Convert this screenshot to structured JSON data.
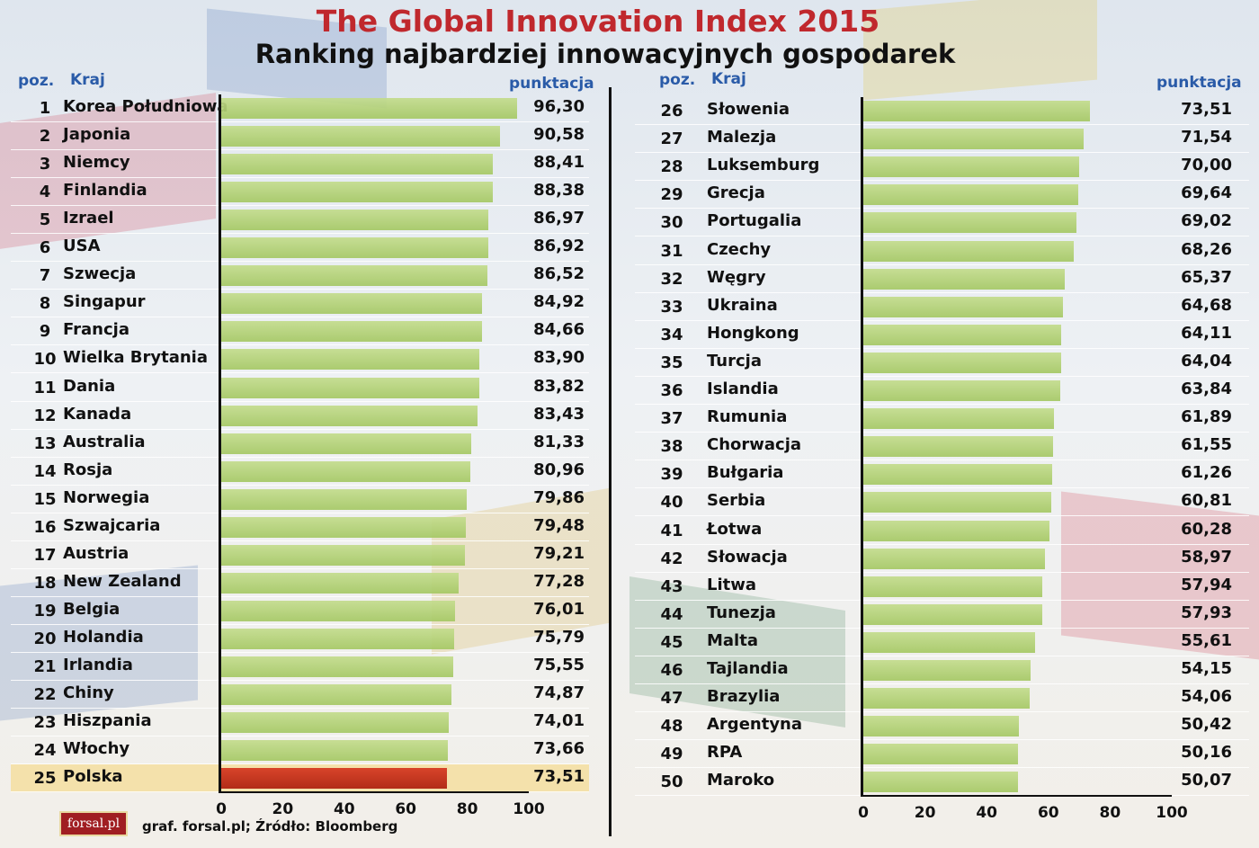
{
  "title": "The Global Innovation Index 2015",
  "subtitle": "Ranking najbardziej innowacyjnych gospodarek",
  "headers": {
    "pos": "poz.",
    "country": "Kraj",
    "score": "punktacja"
  },
  "source": "graf. forsal.pl;  Źródło: Bloomberg",
  "logo": "forsal.pl",
  "colors": {
    "bar": "#b3d277",
    "highlight_bar": "#c8341c",
    "highlight_row": "#f5dea0",
    "title": "#c0282d",
    "header": "#2a5ba8"
  },
  "chart_data": [
    {
      "type": "bar",
      "orientation": "horizontal",
      "xlim": [
        0,
        100
      ],
      "ticks": [
        "0",
        "20",
        "40",
        "60",
        "80",
        "100"
      ],
      "highlight": "Polska",
      "rows": [
        {
          "pos": "1",
          "country": "Korea Południowa",
          "score": "96,30",
          "value": 96.3
        },
        {
          "pos": "2",
          "country": "Japonia",
          "score": "90,58",
          "value": 90.58
        },
        {
          "pos": "3",
          "country": "Niemcy",
          "score": "88,41",
          "value": 88.41
        },
        {
          "pos": "4",
          "country": "Finlandia",
          "score": "88,38",
          "value": 88.38
        },
        {
          "pos": "5",
          "country": "Izrael",
          "score": "86,97",
          "value": 86.97
        },
        {
          "pos": "6",
          "country": "USA",
          "score": "86,92",
          "value": 86.92
        },
        {
          "pos": "7",
          "country": "Szwecja",
          "score": "86,52",
          "value": 86.52
        },
        {
          "pos": "8",
          "country": "Singapur",
          "score": "84,92",
          "value": 84.92
        },
        {
          "pos": "9",
          "country": "Francja",
          "score": "84,66",
          "value": 84.66
        },
        {
          "pos": "10",
          "country": "Wielka Brytania",
          "score": "83,90",
          "value": 83.9
        },
        {
          "pos": "11",
          "country": "Dania",
          "score": "83,82",
          "value": 83.82
        },
        {
          "pos": "12",
          "country": "Kanada",
          "score": "83,43",
          "value": 83.43
        },
        {
          "pos": "13",
          "country": "Australia",
          "score": "81,33",
          "value": 81.33
        },
        {
          "pos": "14",
          "country": "Rosja",
          "score": "80,96",
          "value": 80.96
        },
        {
          "pos": "15",
          "country": "Norwegia",
          "score": "79,86",
          "value": 79.86
        },
        {
          "pos": "16",
          "country": "Szwajcaria",
          "score": "79,48",
          "value": 79.48
        },
        {
          "pos": "17",
          "country": "Austria",
          "score": "79,21",
          "value": 79.21
        },
        {
          "pos": "18",
          "country": "New Zealand",
          "score": "77,28",
          "value": 77.28
        },
        {
          "pos": "19",
          "country": "Belgia",
          "score": "76,01",
          "value": 76.01
        },
        {
          "pos": "20",
          "country": "Holandia",
          "score": "75,79",
          "value": 75.79
        },
        {
          "pos": "21",
          "country": "Irlandia",
          "score": "75,55",
          "value": 75.55
        },
        {
          "pos": "22",
          "country": "Chiny",
          "score": "74,87",
          "value": 74.87
        },
        {
          "pos": "23",
          "country": "Hiszpania",
          "score": "74,01",
          "value": 74.01
        },
        {
          "pos": "24",
          "country": "Włochy",
          "score": "73,66",
          "value": 73.66
        },
        {
          "pos": "25",
          "country": "Polska",
          "score": "73,51",
          "value": 73.51
        }
      ]
    },
    {
      "type": "bar",
      "orientation": "horizontal",
      "xlim": [
        0,
        100
      ],
      "ticks": [
        "0",
        "20",
        "40",
        "60",
        "80",
        "100"
      ],
      "rows": [
        {
          "pos": "26",
          "country": "Słowenia",
          "score": "73,51",
          "value": 73.51
        },
        {
          "pos": "27",
          "country": "Malezja",
          "score": "71,54",
          "value": 71.54
        },
        {
          "pos": "28",
          "country": "Luksemburg",
          "score": "70,00",
          "value": 70.0
        },
        {
          "pos": "29",
          "country": "Grecja",
          "score": "69,64",
          "value": 69.64
        },
        {
          "pos": "30",
          "country": "Portugalia",
          "score": "69,02",
          "value": 69.02
        },
        {
          "pos": "31",
          "country": "Czechy",
          "score": "68,26",
          "value": 68.26
        },
        {
          "pos": "32",
          "country": "Węgry",
          "score": "65,37",
          "value": 65.37
        },
        {
          "pos": "33",
          "country": "Ukraina",
          "score": "64,68",
          "value": 64.68
        },
        {
          "pos": "34",
          "country": "Hongkong",
          "score": "64,11",
          "value": 64.11
        },
        {
          "pos": "35",
          "country": "Turcja",
          "score": "64,04",
          "value": 64.04
        },
        {
          "pos": "36",
          "country": "Islandia",
          "score": "63,84",
          "value": 63.84
        },
        {
          "pos": "37",
          "country": "Rumunia",
          "score": "61,89",
          "value": 61.89
        },
        {
          "pos": "38",
          "country": "Chorwacja",
          "score": "61,55",
          "value": 61.55
        },
        {
          "pos": "39",
          "country": "Bułgaria",
          "score": "61,26",
          "value": 61.26
        },
        {
          "pos": "40",
          "country": "Serbia",
          "score": "60,81",
          "value": 60.81
        },
        {
          "pos": "41",
          "country": "Łotwa",
          "score": "60,28",
          "value": 60.28
        },
        {
          "pos": "42",
          "country": "Słowacja",
          "score": "58,97",
          "value": 58.97
        },
        {
          "pos": "43",
          "country": "Litwa",
          "score": "57,94",
          "value": 57.94
        },
        {
          "pos": "44",
          "country": "Tunezja",
          "score": "57,93",
          "value": 57.93
        },
        {
          "pos": "45",
          "country": "Malta",
          "score": "55,61",
          "value": 55.61
        },
        {
          "pos": "46",
          "country": "Tajlandia",
          "score": "54,15",
          "value": 54.15
        },
        {
          "pos": "47",
          "country": "Brazylia",
          "score": "54,06",
          "value": 54.06
        },
        {
          "pos": "48",
          "country": "Argentyna",
          "score": "50,42",
          "value": 50.42
        },
        {
          "pos": "49",
          "country": "RPA",
          "score": "50,16",
          "value": 50.16
        },
        {
          "pos": "50",
          "country": "Maroko",
          "score": "50,07",
          "value": 50.07
        }
      ]
    }
  ]
}
